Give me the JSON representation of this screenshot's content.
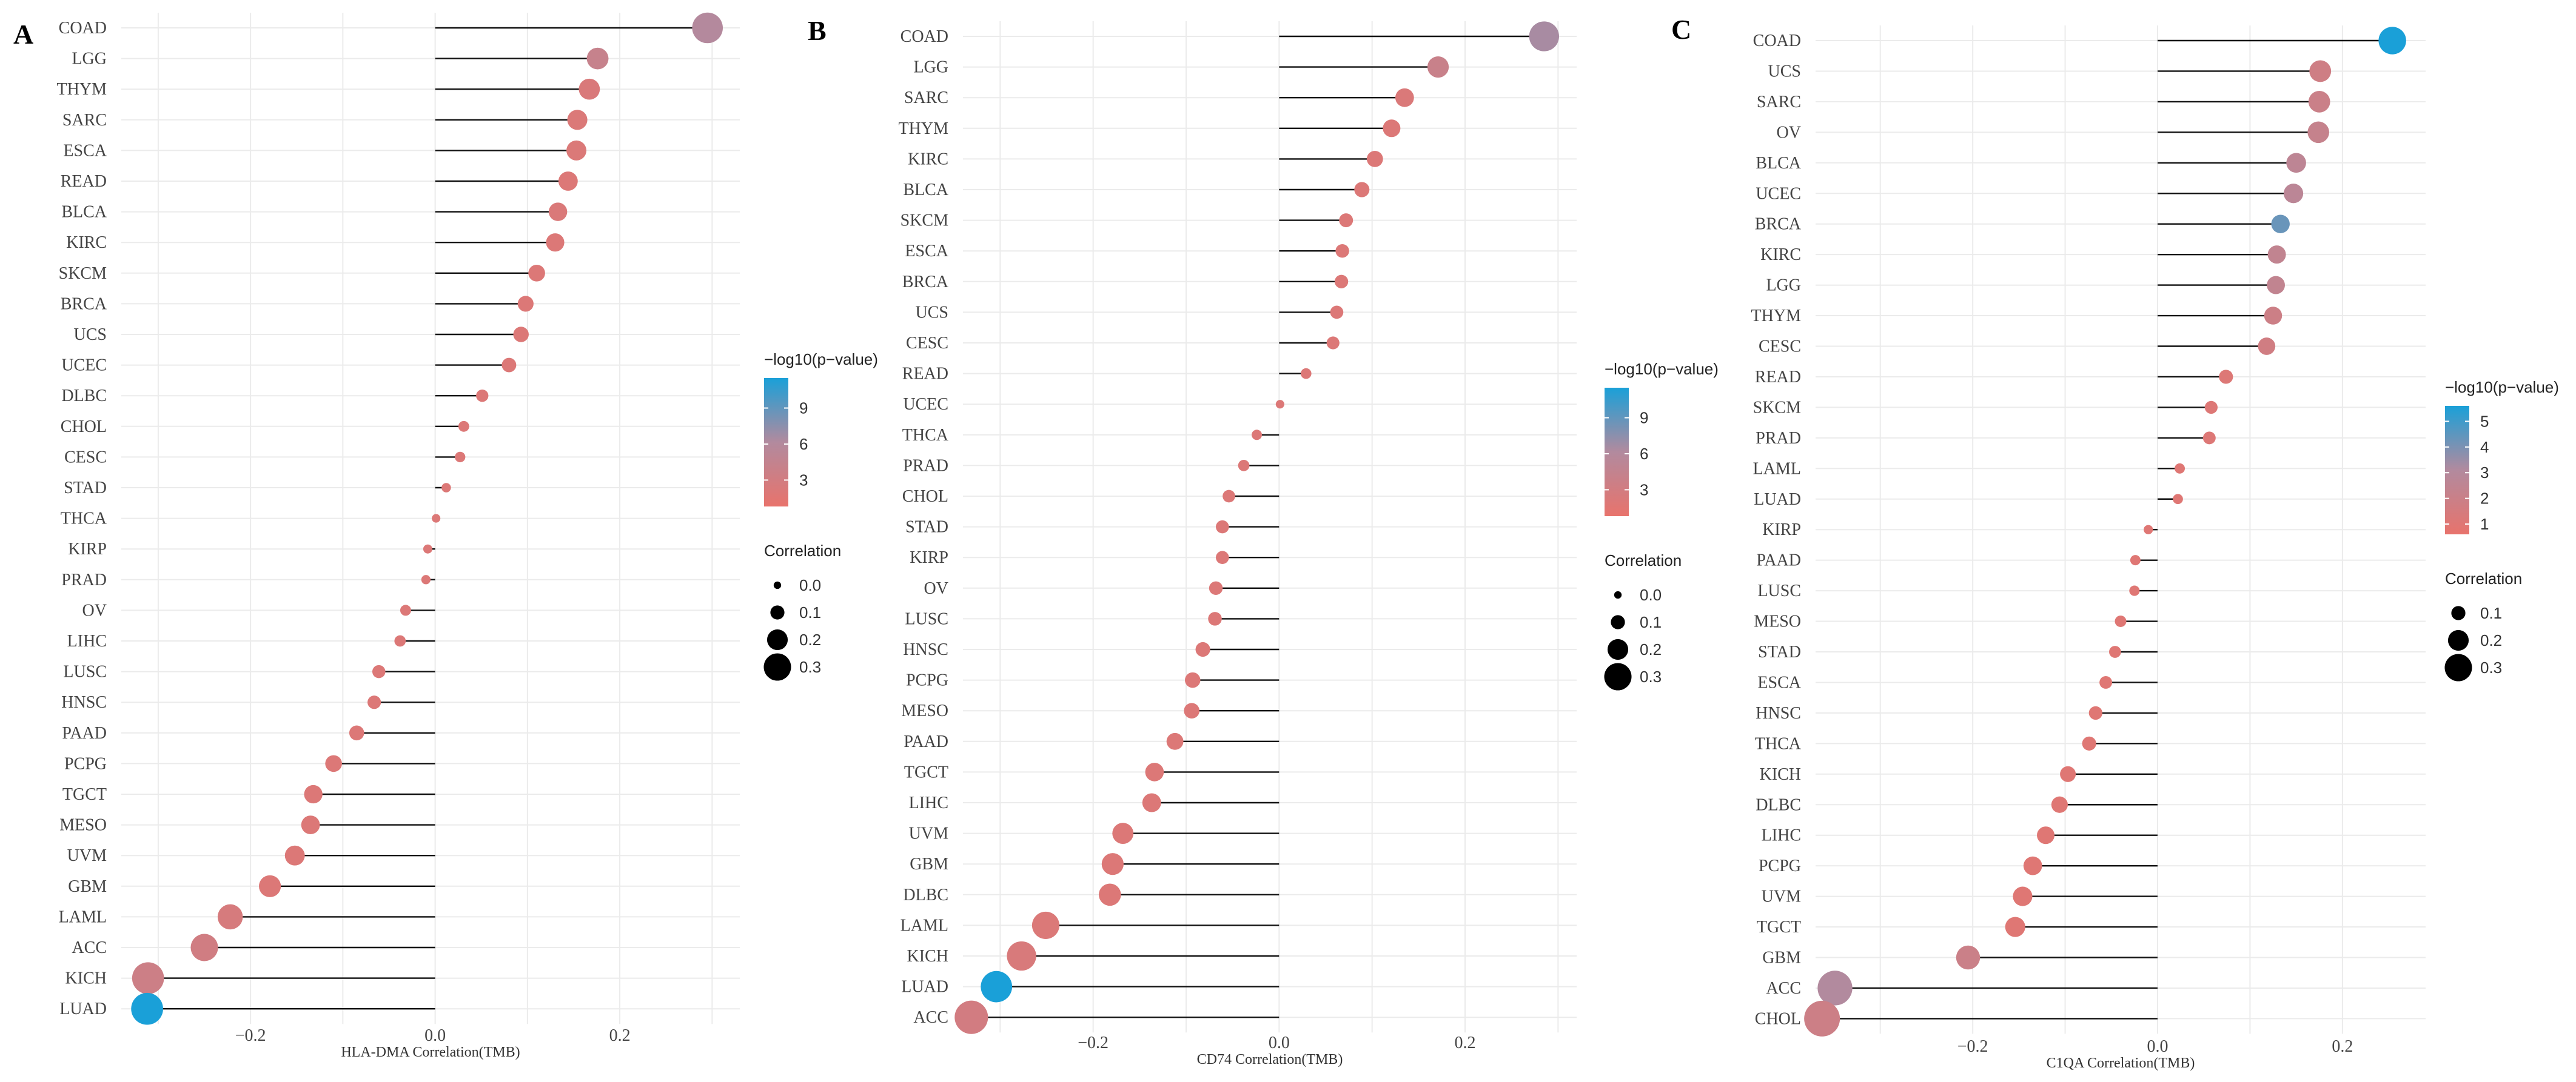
{
  "chart_data": [
    {
      "type": "lollipop",
      "panel": "A",
      "xlabel": "HLA-DMA Correlation(TMB)",
      "xticks": [
        -0.2,
        0.0,
        0.2
      ],
      "xtick_labels": [
        "−0.2",
        "0.0",
        "0.2"
      ],
      "xlim": [
        -0.34,
        0.33
      ],
      "categories": [
        "COAD",
        "LGG",
        "THYM",
        "SARC",
        "ESCA",
        "READ",
        "BLCA",
        "KIRC",
        "SKCM",
        "BRCA",
        "UCS",
        "UCEC",
        "DLBC",
        "CHOL",
        "CESC",
        "STAD",
        "THCA",
        "KIRP",
        "PRAD",
        "OV",
        "LIHC",
        "LUSC",
        "HNSC",
        "PAAD",
        "PCPG",
        "TGCT",
        "MESO",
        "UVM",
        "GBM",
        "LAML",
        "ACC",
        "KICH",
        "LUAD"
      ],
      "values": [
        0.295,
        0.176,
        0.167,
        0.154,
        0.153,
        0.144,
        0.133,
        0.13,
        0.11,
        0.098,
        0.093,
        0.08,
        0.051,
        0.031,
        0.027,
        0.012,
        0.001,
        -0.008,
        -0.01,
        -0.032,
        -0.038,
        -0.061,
        -0.066,
        -0.085,
        -0.11,
        -0.132,
        -0.135,
        -0.152,
        -0.179,
        -0.222,
        -0.25,
        -0.311,
        -0.312
      ],
      "neglog10p": [
        6.0,
        4.2,
        2.3,
        2.1,
        2.1,
        2.0,
        2.2,
        2.0,
        2.0,
        2.0,
        2.0,
        2.0,
        2.0,
        2.0,
        2.0,
        2.0,
        2.0,
        2.0,
        2.0,
        2.0,
        2.0,
        2.0,
        2.0,
        2.0,
        2.0,
        2.0,
        2.0,
        2.0,
        2.0,
        2.6,
        3.2,
        3.6,
        11.5
      ],
      "color_legend": {
        "title": "−log10(p−value)",
        "ticks": [
          3,
          6,
          9
        ],
        "labels": [
          "3",
          "6",
          "9"
        ],
        "range": [
          0.8,
          11.5
        ]
      },
      "size_legend": {
        "title": "Correlation",
        "values": [
          0.0,
          0.1,
          0.2,
          0.3
        ],
        "labels": [
          "0.0",
          "0.1",
          "0.2",
          "0.3"
        ]
      }
    },
    {
      "type": "lollipop",
      "panel": "B",
      "xlabel": "CD74 Correlation(TMB)",
      "xticks": [
        -0.2,
        0.0,
        0.2
      ],
      "xtick_labels": [
        "−0.2",
        "0.0",
        "0.2"
      ],
      "xlim": [
        -0.34,
        0.32
      ],
      "categories": [
        "COAD",
        "LGG",
        "SARC",
        "THYM",
        "KIRC",
        "BLCA",
        "SKCM",
        "ESCA",
        "BRCA",
        "UCS",
        "CESC",
        "READ",
        "UCEC",
        "THCA",
        "PRAD",
        "CHOL",
        "STAD",
        "KIRP",
        "OV",
        "LUSC",
        "HNSC",
        "PCPG",
        "MESO",
        "PAAD",
        "TGCT",
        "LIHC",
        "UVM",
        "GBM",
        "DLBC",
        "LAML",
        "KICH",
        "LUAD",
        "ACC"
      ],
      "values": [
        0.285,
        0.171,
        0.135,
        0.121,
        0.103,
        0.089,
        0.072,
        0.068,
        0.067,
        0.062,
        0.058,
        0.029,
        0.001,
        -0.024,
        -0.038,
        -0.054,
        -0.061,
        -0.061,
        -0.068,
        -0.069,
        -0.082,
        -0.093,
        -0.094,
        -0.112,
        -0.134,
        -0.137,
        -0.168,
        -0.179,
        -0.182,
        -0.251,
        -0.277,
        -0.304,
        -0.331
      ],
      "neglog10p": [
        6.5,
        4.0,
        2.2,
        2.0,
        2.0,
        2.0,
        2.0,
        2.0,
        2.0,
        2.0,
        2.0,
        2.0,
        2.0,
        2.0,
        2.0,
        2.0,
        2.0,
        2.0,
        2.0,
        2.0,
        2.0,
        2.0,
        2.0,
        2.0,
        2.0,
        2.0,
        2.0,
        2.0,
        2.0,
        2.1,
        2.4,
        11.5,
        3.0
      ],
      "color_legend": {
        "title": "−log10(p−value)",
        "ticks": [
          3,
          6,
          9
        ],
        "labels": [
          "3",
          "6",
          "9"
        ],
        "range": [
          0.8,
          11.5
        ]
      },
      "size_legend": {
        "title": "Correlation",
        "values": [
          0.0,
          0.1,
          0.2,
          0.3
        ],
        "labels": [
          "0.0",
          "0.1",
          "0.2",
          "0.3"
        ]
      }
    },
    {
      "type": "lollipop",
      "panel": "C",
      "xlabel": "C1QA Correlation(TMB)",
      "xticks": [
        -0.2,
        0.0,
        0.2
      ],
      "xtick_labels": [
        "−0.2",
        "0.0",
        "0.2"
      ],
      "xlim": [
        -0.37,
        0.29
      ],
      "categories": [
        "COAD",
        "UCS",
        "SARC",
        "OV",
        "BLCA",
        "UCEC",
        "BRCA",
        "KIRC",
        "LGG",
        "THYM",
        "CESC",
        "READ",
        "SKCM",
        "PRAD",
        "LAML",
        "LUAD",
        "KIRP",
        "PAAD",
        "LUSC",
        "MESO",
        "STAD",
        "ESCA",
        "HNSC",
        "THCA",
        "KICH",
        "DLBC",
        "LIHC",
        "PCPG",
        "UVM",
        "TGCT",
        "GBM",
        "ACC",
        "CHOL"
      ],
      "values": [
        0.254,
        0.176,
        0.175,
        0.174,
        0.15,
        0.147,
        0.133,
        0.129,
        0.128,
        0.125,
        0.118,
        0.074,
        0.058,
        0.056,
        0.024,
        0.022,
        -0.01,
        -0.024,
        -0.025,
        -0.04,
        -0.046,
        -0.056,
        -0.067,
        -0.074,
        -0.097,
        -0.106,
        -0.121,
        -0.135,
        -0.146,
        -0.154,
        -0.205,
        -0.349,
        -0.363
      ],
      "neglog10p": [
        5.6,
        1.8,
        2.0,
        2.2,
        2.6,
        2.7,
        4.3,
        2.4,
        2.4,
        1.9,
        1.7,
        1.1,
        1.1,
        1.1,
        1.0,
        1.0,
        1.0,
        1.0,
        1.0,
        1.0,
        1.0,
        1.0,
        1.0,
        1.0,
        1.0,
        1.0,
        1.0,
        1.0,
        1.0,
        1.0,
        2.0,
        3.1,
        1.9
      ],
      "color_legend": {
        "title": "−log10(p−value)",
        "ticks": [
          1,
          2,
          3,
          4,
          5
        ],
        "labels": [
          "1",
          "2",
          "3",
          "4",
          "5"
        ],
        "range": [
          0.6,
          5.6
        ]
      },
      "size_legend": {
        "title": "Correlation",
        "values": [
          0.1,
          0.2,
          0.3
        ],
        "labels": [
          "0.1",
          "0.2",
          "0.3"
        ]
      }
    }
  ],
  "colors": {
    "low": "#e8736c",
    "mid": "#b28a9e",
    "high": "#1aa0d8",
    "stem": "#111111",
    "grid": "#ebebeb"
  }
}
